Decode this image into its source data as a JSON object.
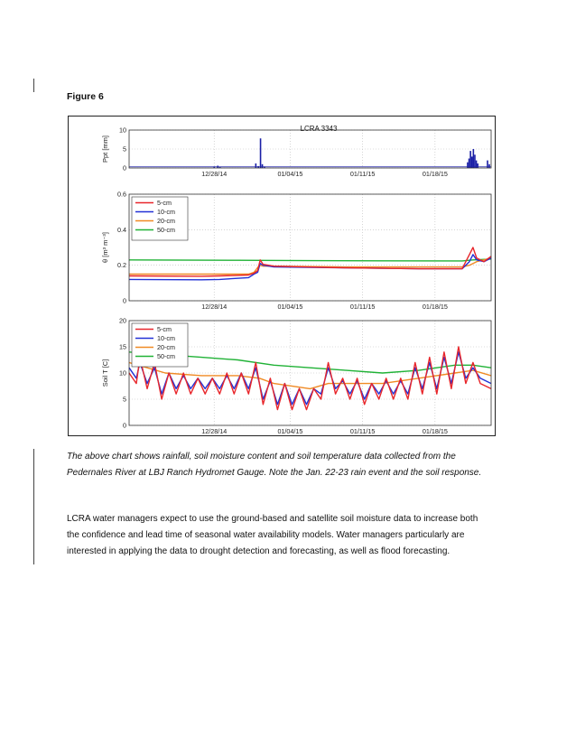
{
  "figure": {
    "label": "Figure 6"
  },
  "chart_data": {
    "title": "LCRA 3343",
    "type": "line",
    "x_ticks": [
      "12/28/14",
      "01/04/15",
      "01/11/15",
      "01/18/15"
    ],
    "panels": [
      {
        "id": "precip",
        "ylabel": "Ppt [mm]",
        "yticks": [
          "0",
          "5",
          "10"
        ],
        "ylim": [
          0,
          10
        ],
        "bars": [
          {
            "x": 0.235,
            "y": 0.4
          },
          {
            "x": 0.245,
            "y": 0.6
          },
          {
            "x": 0.251,
            "y": 0.3
          },
          {
            "x": 0.35,
            "y": 1.2
          },
          {
            "x": 0.357,
            "y": 0.5
          },
          {
            "x": 0.363,
            "y": 7.8
          },
          {
            "x": 0.368,
            "y": 1.0
          },
          {
            "x": 0.374,
            "y": 0.4
          },
          {
            "x": 0.935,
            "y": 1.5
          },
          {
            "x": 0.939,
            "y": 2.5
          },
          {
            "x": 0.943,
            "y": 4.5
          },
          {
            "x": 0.947,
            "y": 3.0
          },
          {
            "x": 0.951,
            "y": 5.0
          },
          {
            "x": 0.955,
            "y": 3.5
          },
          {
            "x": 0.959,
            "y": 2.0
          },
          {
            "x": 0.963,
            "y": 1.2
          },
          {
            "x": 0.99,
            "y": 2.0
          },
          {
            "x": 0.995,
            "y": 1.0
          }
        ]
      },
      {
        "id": "moisture",
        "ylabel": "θ [m³ m⁻³]",
        "yticks": [
          "0",
          "0.2",
          "0.4",
          "0.6"
        ],
        "ylim": [
          0,
          0.6
        ],
        "legend": [
          "5-cm",
          "10-cm",
          "20-cm",
          "50-cm"
        ],
        "series": [
          {
            "name": "5-cm",
            "color": "#e8262b",
            "points": [
              [
                0,
                0.14
              ],
              [
                0.2,
                0.138
              ],
              [
                0.25,
                0.14
              ],
              [
                0.33,
                0.145
              ],
              [
                0.345,
                0.155
              ],
              [
                0.355,
                0.17
              ],
              [
                0.362,
                0.23
              ],
              [
                0.37,
                0.205
              ],
              [
                0.4,
                0.195
              ],
              [
                0.6,
                0.185
              ],
              [
                0.8,
                0.18
              ],
              [
                0.92,
                0.18
              ],
              [
                0.94,
                0.26
              ],
              [
                0.95,
                0.3
              ],
              [
                0.96,
                0.24
              ],
              [
                0.98,
                0.22
              ],
              [
                1.0,
                0.25
              ]
            ]
          },
          {
            "name": "10-cm",
            "color": "#2231d6",
            "points": [
              [
                0,
                0.12
              ],
              [
                0.2,
                0.118
              ],
              [
                0.25,
                0.12
              ],
              [
                0.33,
                0.13
              ],
              [
                0.345,
                0.15
              ],
              [
                0.355,
                0.16
              ],
              [
                0.362,
                0.21
              ],
              [
                0.37,
                0.2
              ],
              [
                0.4,
                0.19
              ],
              [
                0.6,
                0.185
              ],
              [
                0.8,
                0.18
              ],
              [
                0.92,
                0.18
              ],
              [
                0.94,
                0.22
              ],
              [
                0.95,
                0.26
              ],
              [
                0.96,
                0.23
              ],
              [
                0.98,
                0.22
              ],
              [
                1.0,
                0.24
              ]
            ]
          },
          {
            "name": "20-cm",
            "color": "#f08a24",
            "points": [
              [
                0,
                0.15
              ],
              [
                0.2,
                0.15
              ],
              [
                0.33,
                0.15
              ],
              [
                0.345,
                0.16
              ],
              [
                0.36,
                0.2
              ],
              [
                0.37,
                0.195
              ],
              [
                0.4,
                0.195
              ],
              [
                0.6,
                0.19
              ],
              [
                0.8,
                0.19
              ],
              [
                0.92,
                0.19
              ],
              [
                0.94,
                0.2
              ],
              [
                0.96,
                0.22
              ],
              [
                1.0,
                0.24
              ]
            ]
          },
          {
            "name": "50-cm",
            "color": "#20b236",
            "points": [
              [
                0,
                0.23
              ],
              [
                0.3,
                0.228
              ],
              [
                0.5,
                0.226
              ],
              [
                0.7,
                0.225
              ],
              [
                0.92,
                0.224
              ],
              [
                0.95,
                0.23
              ],
              [
                1.0,
                0.235
              ]
            ]
          }
        ]
      },
      {
        "id": "soiltemp",
        "ylabel": "Soil T [C]",
        "yticks": [
          "0",
          "5",
          "10",
          "15",
          "20"
        ],
        "ylim": [
          0,
          20
        ],
        "legend": [
          "5-cm",
          "10-cm",
          "20-cm",
          "50-cm"
        ],
        "series": [
          {
            "name": "5-cm",
            "color": "#e8262b",
            "points": [
              [
                0,
                10
              ],
              [
                0.02,
                8
              ],
              [
                0.03,
                13
              ],
              [
                0.05,
                7
              ],
              [
                0.07,
                12
              ],
              [
                0.09,
                5
              ],
              [
                0.11,
                10
              ],
              [
                0.13,
                6
              ],
              [
                0.15,
                10
              ],
              [
                0.17,
                6
              ],
              [
                0.19,
                9
              ],
              [
                0.21,
                6
              ],
              [
                0.23,
                9
              ],
              [
                0.25,
                6
              ],
              [
                0.27,
                10
              ],
              [
                0.29,
                6
              ],
              [
                0.31,
                10
              ],
              [
                0.33,
                6
              ],
              [
                0.35,
                12
              ],
              [
                0.37,
                4
              ],
              [
                0.39,
                9
              ],
              [
                0.41,
                3
              ],
              [
                0.43,
                8
              ],
              [
                0.45,
                3
              ],
              [
                0.47,
                7
              ],
              [
                0.49,
                3
              ],
              [
                0.51,
                7
              ],
              [
                0.53,
                5
              ],
              [
                0.55,
                12
              ],
              [
                0.57,
                6
              ],
              [
                0.59,
                9
              ],
              [
                0.61,
                5
              ],
              [
                0.63,
                9
              ],
              [
                0.65,
                4
              ],
              [
                0.67,
                8
              ],
              [
                0.69,
                5
              ],
              [
                0.71,
                9
              ],
              [
                0.73,
                5
              ],
              [
                0.75,
                9
              ],
              [
                0.77,
                5
              ],
              [
                0.79,
                12
              ],
              [
                0.81,
                6
              ],
              [
                0.83,
                13
              ],
              [
                0.85,
                6
              ],
              [
                0.87,
                14
              ],
              [
                0.89,
                7
              ],
              [
                0.91,
                15
              ],
              [
                0.93,
                8
              ],
              [
                0.95,
                12
              ],
              [
                0.97,
                8
              ],
              [
                1.0,
                7
              ]
            ]
          },
          {
            "name": "10-cm",
            "color": "#2231d6",
            "points": [
              [
                0,
                11
              ],
              [
                0.02,
                9
              ],
              [
                0.03,
                12
              ],
              [
                0.05,
                8
              ],
              [
                0.07,
                11
              ],
              [
                0.09,
                6
              ],
              [
                0.11,
                10
              ],
              [
                0.13,
                7
              ],
              [
                0.15,
                9.5
              ],
              [
                0.17,
                7
              ],
              [
                0.19,
                9
              ],
              [
                0.21,
                7
              ],
              [
                0.23,
                9
              ],
              [
                0.25,
                7
              ],
              [
                0.27,
                9.5
              ],
              [
                0.29,
                7
              ],
              [
                0.31,
                10
              ],
              [
                0.33,
                7
              ],
              [
                0.35,
                11
              ],
              [
                0.37,
                5
              ],
              [
                0.39,
                8.5
              ],
              [
                0.41,
                4
              ],
              [
                0.43,
                8
              ],
              [
                0.45,
                4
              ],
              [
                0.47,
                7
              ],
              [
                0.49,
                4
              ],
              [
                0.51,
                7
              ],
              [
                0.53,
                6
              ],
              [
                0.55,
                11
              ],
              [
                0.57,
                7
              ],
              [
                0.59,
                8.5
              ],
              [
                0.61,
                6
              ],
              [
                0.63,
                8.5
              ],
              [
                0.65,
                5
              ],
              [
                0.67,
                8
              ],
              [
                0.69,
                6
              ],
              [
                0.71,
                8.5
              ],
              [
                0.73,
                6
              ],
              [
                0.75,
                8.5
              ],
              [
                0.77,
                6
              ],
              [
                0.79,
                11
              ],
              [
                0.81,
                7
              ],
              [
                0.83,
                12
              ],
              [
                0.85,
                7
              ],
              [
                0.87,
                13
              ],
              [
                0.89,
                8
              ],
              [
                0.91,
                14
              ],
              [
                0.93,
                9
              ],
              [
                0.95,
                11
              ],
              [
                0.97,
                9
              ],
              [
                1.0,
                8
              ]
            ]
          },
          {
            "name": "20-cm",
            "color": "#f08a24",
            "points": [
              [
                0,
                12
              ],
              [
                0.05,
                11
              ],
              [
                0.1,
                10
              ],
              [
                0.2,
                9.5
              ],
              [
                0.3,
                9.5
              ],
              [
                0.36,
                9
              ],
              [
                0.4,
                8
              ],
              [
                0.5,
                7
              ],
              [
                0.55,
                8
              ],
              [
                0.6,
                8
              ],
              [
                0.7,
                8
              ],
              [
                0.8,
                9
              ],
              [
                0.9,
                10
              ],
              [
                0.95,
                10.5
              ],
              [
                1.0,
                9.5
              ]
            ]
          },
          {
            "name": "50-cm",
            "color": "#20b236",
            "points": [
              [
                0,
                14
              ],
              [
                0.1,
                13.5
              ],
              [
                0.2,
                13
              ],
              [
                0.3,
                12.5
              ],
              [
                0.4,
                11.5
              ],
              [
                0.5,
                11
              ],
              [
                0.6,
                10.5
              ],
              [
                0.7,
                10
              ],
              [
                0.8,
                10.5
              ],
              [
                0.9,
                11.5
              ],
              [
                0.95,
                11.5
              ],
              [
                1.0,
                11
              ]
            ]
          }
        ]
      }
    ]
  },
  "caption": {
    "line1": "The above chart shows rainfall, soil moisture content and soil temperature data collected from the",
    "line2": "Pedernales River at LBJ Ranch Hydromet Gauge. Note the Jan. 22-23 rain event and the soil response."
  },
  "body": {
    "line1": "LCRA water managers expect to use the ground-based and satellite soil moisture data to increase both",
    "line2": "the confidence and lead time of seasonal water availability models. Water managers particularly are",
    "line3": "interested in applying the data to drought detection and forecasting, as well as flood forecasting."
  }
}
